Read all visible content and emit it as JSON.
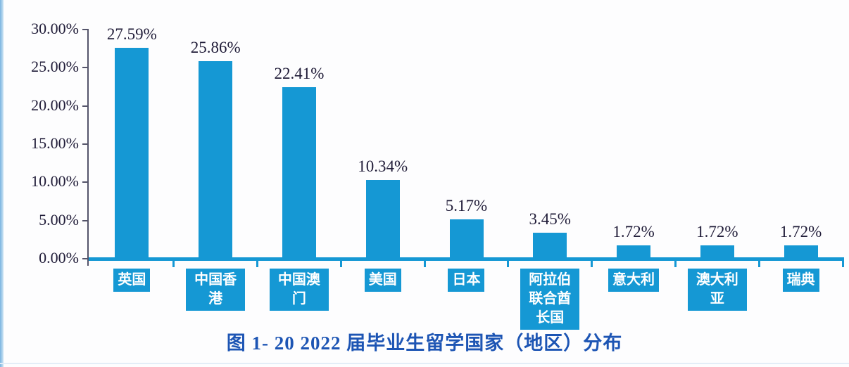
{
  "page": {
    "background": "#fdfdfe",
    "left_strip_color": "#79b4e0",
    "bottom_line_color": "#e3edf7"
  },
  "title": {
    "text": "图 1- 20  2022 届毕业生留学国家（地区）分布",
    "color": "#1d55b4"
  },
  "chart_data": {
    "type": "bar",
    "title": "图 1- 20  2022 届毕业生留学国家（地区）分布",
    "categories": [
      "英国",
      "中国香港",
      "中国澳门",
      "美国",
      "日本",
      "阿拉伯联合酋长国",
      "意大利",
      "澳大利亚",
      "瑞典"
    ],
    "values": [
      27.59,
      25.86,
      22.41,
      10.34,
      5.17,
      3.45,
      1.72,
      1.72,
      1.72
    ],
    "value_labels": [
      "27.59%",
      "25.86%",
      "22.41%",
      "10.34%",
      "5.17%",
      "3.45%",
      "1.72%",
      "1.72%",
      "1.72%"
    ],
    "y_ticks": [
      "30.00%",
      "25.00%",
      "20.00%",
      "15.00%",
      "10.00%",
      "5.00%",
      "0.00%"
    ],
    "ylim": [
      0,
      30
    ],
    "xlabel": "",
    "ylabel": "",
    "grid": false,
    "legend_position": "none",
    "bar_color": "#1598d4",
    "axis_color": "#54546a",
    "label_color": "#201c38",
    "category_label_bg": "#1598d4",
    "category_label_text": "#ffffff"
  }
}
